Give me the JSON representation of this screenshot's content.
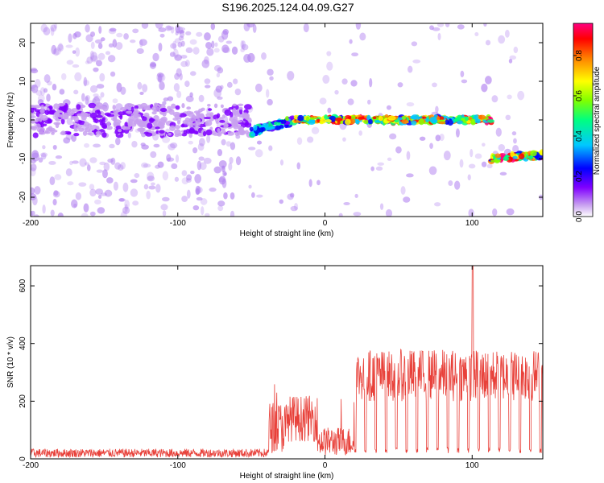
{
  "figure": {
    "title": "S196.2025.124.04.09.G27"
  },
  "chart_data": [
    {
      "type": "heatmap",
      "xlabel": "Height of straight line (km)",
      "ylabel": "Frequency (Hz)",
      "xlim": [
        -200,
        148
      ],
      "ylim": [
        -25,
        25
      ],
      "xticks": [
        "-200",
        "-100",
        "0",
        "100"
      ],
      "yticks": [
        "20",
        "10",
        "0",
        "-10",
        "-20"
      ],
      "colorbar": {
        "label": "Normalized spectral amplitude",
        "range": [
          0.0,
          0.96
        ],
        "ticks": [
          "0.0",
          "0.2",
          "0.4",
          "0.6",
          "0.8"
        ],
        "colormap": [
          "#ffffff",
          "#c8a0f0",
          "#8000ff",
          "#0000ff",
          "#00c8ff",
          "#00ff80",
          "#80ff00",
          "#ffff00",
          "#ff8000",
          "#ff0000",
          "#ff0080"
        ]
      },
      "ridge": [
        {
          "x": [
            -200,
            -50
          ],
          "freq": 0,
          "amplitude": 0.15,
          "spread_hz": 8
        },
        {
          "x": [
            -50,
            -20
          ],
          "freq": [
            -3,
            0
          ],
          "amplitude": 0.45,
          "spread_hz": 2
        },
        {
          "x": [
            -20,
            113
          ],
          "freq": 0,
          "amplitude": 0.75,
          "spread_hz": 1.5
        },
        {
          "x": [
            113,
            148
          ],
          "freq": [
            -10,
            -9
          ],
          "amplitude": 0.8,
          "spread_hz": 1.5
        }
      ]
    },
    {
      "type": "line",
      "xlabel": "Height of straight line (km)",
      "ylabel": "SNR (10 * v/v)",
      "xlim": [
        -200,
        148
      ],
      "ylim": [
        0,
        670
      ],
      "xticks": [
        "-200",
        "-100",
        "0",
        "100"
      ],
      "yticks": [
        "600",
        "400",
        "200",
        "0"
      ],
      "series": [
        {
          "color": "#e8413a",
          "segments": [
            {
              "x": [
                -200,
                -38
              ],
              "level": 20,
              "noise": 15
            },
            {
              "x": [
                -38,
                -25
              ],
              "level": 110,
              "noise": 90,
              "peak": 285
            },
            {
              "x": [
                -25,
                -5
              ],
              "level": 140,
              "noise": 80,
              "peak": 210
            },
            {
              "x": [
                -5,
                20
              ],
              "level": 60,
              "noise": 50,
              "peak": 210
            },
            {
              "x": [
                20,
                148
              ],
              "level": 290,
              "noise": 90,
              "dips_every_km": 7,
              "dip_level": 20
            },
            {
              "x": [
                100,
                101
              ],
              "peak": 670
            }
          ]
        }
      ]
    }
  ]
}
